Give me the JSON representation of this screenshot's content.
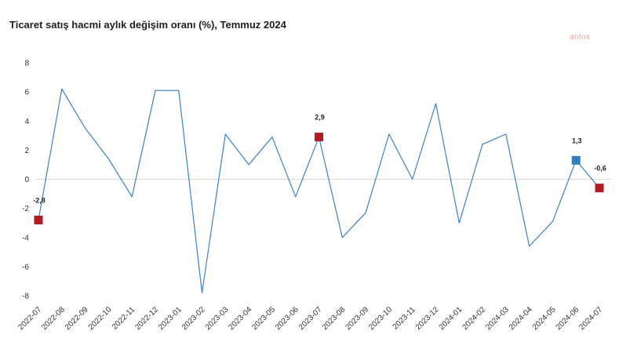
{
  "chart_data": {
    "type": "line",
    "title": "Ticaret satış hacmi aylık değişim oranı (%), Temmuz 2024",
    "xlabel": "",
    "ylabel": "",
    "ylim": [
      -8,
      8
    ],
    "yticks": [
      8,
      6,
      4,
      2,
      0,
      -2,
      -4,
      -6,
      -8
    ],
    "grid": false,
    "categories": [
      "2022-07",
      "2022-08",
      "2022-09",
      "2022-10",
      "2022-11",
      "2022-12",
      "2023-01",
      "2023-02",
      "2023-03",
      "2023-04",
      "2023-05",
      "2023-06",
      "2023-07",
      "2023-08",
      "2023-09",
      "2023-10",
      "2023-11",
      "2023-12",
      "2024-01",
      "2024-02",
      "2024-03",
      "2024-04",
      "2024-05",
      "2024-06",
      "2024-07"
    ],
    "series": [
      {
        "values": [
          -2.8,
          6.2,
          3.5,
          1.4,
          -1.2,
          6.1,
          6.1,
          -7.8,
          3.1,
          1.0,
          2.9,
          -1.2,
          2.9,
          -4.0,
          -2.3,
          3.1,
          0.0,
          5.2,
          -3.0,
          2.4,
          3.1,
          -4.6,
          -2.9,
          1.3,
          -0.6
        ],
        "color": "#3b82c4"
      }
    ],
    "highlighted_points": [
      {
        "index": 0,
        "label": "-2,8",
        "color": "#b01c22"
      },
      {
        "index": 12,
        "label": "2,9",
        "color": "#b01c22"
      },
      {
        "index": 23,
        "label": "1,3",
        "color": "#2e7fbf"
      },
      {
        "index": 24,
        "label": "-0,6",
        "color": "#b01c22"
      }
    ]
  },
  "watermark": "anlox"
}
